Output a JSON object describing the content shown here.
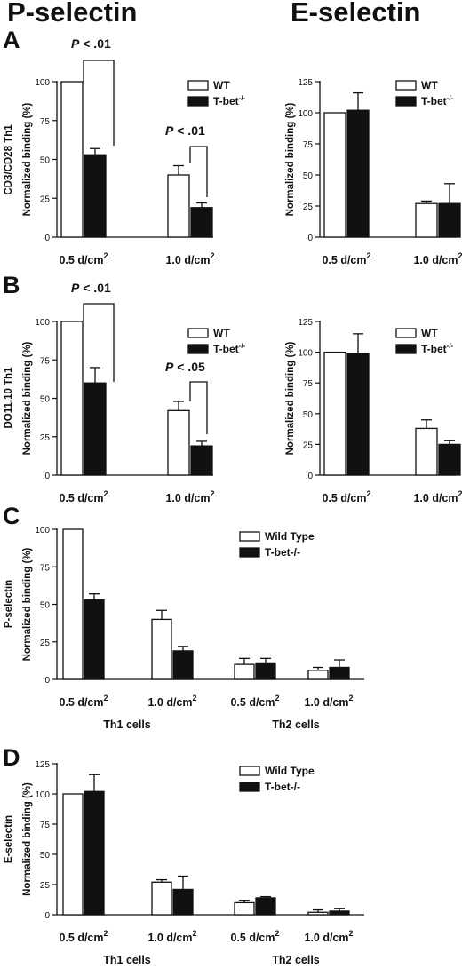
{
  "figure": {
    "col_titles": [
      "P-selectin",
      "E-selectin"
    ],
    "panel_letters": [
      "A",
      "B",
      "C",
      "D"
    ],
    "row_labels": [
      "CD3/CD28 Th1",
      "DO11.10 Th1",
      "P-selectin",
      "E-selectin"
    ]
  },
  "colors": {
    "wt": "#ffffff",
    "ko": "#111111",
    "axis": "#111111"
  },
  "chart_data": [
    {
      "id": "A-P",
      "type": "bar",
      "title": "",
      "xlabel": "",
      "ylabel": "Normalized binding (%)",
      "ylim": [
        0,
        100
      ],
      "yticks": [
        0,
        25,
        50,
        75,
        100
      ],
      "categories": [
        "0.5 d/cm²",
        "1.0 d/cm²"
      ],
      "group_labels": [],
      "series": [
        {
          "name": "WT",
          "values": [
            100,
            40
          ],
          "errors": [
            0,
            6
          ]
        },
        {
          "name": "T-bet⁻/⁻",
          "values": [
            53,
            19
          ],
          "errors": [
            4,
            3
          ]
        }
      ],
      "annotations": [
        "P < .01",
        "P < .01"
      ],
      "legend_position": "top-right"
    },
    {
      "id": "A-E",
      "type": "bar",
      "title": "",
      "xlabel": "",
      "ylabel": "Normalized binding (%)",
      "ylim": [
        0,
        125
      ],
      "yticks": [
        0,
        25,
        50,
        75,
        100,
        125
      ],
      "categories": [
        "0.5 d/cm²",
        "1.0 d/cm²"
      ],
      "group_labels": [],
      "series": [
        {
          "name": "WT",
          "values": [
            100,
            27
          ],
          "errors": [
            0,
            2
          ]
        },
        {
          "name": "T-bet⁻/⁻",
          "values": [
            102,
            27
          ],
          "errors": [
            14,
            16
          ]
        }
      ],
      "annotations": [],
      "legend_position": "top-right"
    },
    {
      "id": "B-P",
      "type": "bar",
      "title": "",
      "xlabel": "",
      "ylabel": "Normalized binding (%)",
      "ylim": [
        0,
        100
      ],
      "yticks": [
        0,
        25,
        50,
        75,
        100
      ],
      "categories": [
        "0.5 d/cm²",
        "1.0 d/cm²"
      ],
      "group_labels": [],
      "series": [
        {
          "name": "WT",
          "values": [
            100,
            42
          ],
          "errors": [
            0,
            6
          ]
        },
        {
          "name": "T-bet⁻/⁻",
          "values": [
            60,
            19
          ],
          "errors": [
            10,
            3
          ]
        }
      ],
      "annotations": [
        "P < .01",
        "P < .05"
      ],
      "legend_position": "top-right"
    },
    {
      "id": "B-E",
      "type": "bar",
      "title": "",
      "xlabel": "",
      "ylabel": "Normalized binding (%)",
      "ylim": [
        0,
        125
      ],
      "yticks": [
        0,
        25,
        50,
        75,
        100,
        125
      ],
      "categories": [
        "0.5 d/cm²",
        "1.0 d/cm²"
      ],
      "group_labels": [],
      "series": [
        {
          "name": "WT",
          "values": [
            100,
            38
          ],
          "errors": [
            0,
            7
          ]
        },
        {
          "name": "T-bet⁻/⁻",
          "values": [
            99,
            25
          ],
          "errors": [
            16,
            3
          ]
        }
      ],
      "annotations": [],
      "legend_position": "top-right"
    },
    {
      "id": "C",
      "type": "bar",
      "title": "",
      "xlabel": "",
      "ylabel": "Normalized binding (%)",
      "ylim": [
        0,
        100
      ],
      "yticks": [
        0,
        25,
        50,
        75,
        100
      ],
      "categories": [
        "0.5 d/cm²",
        "1.0 d/cm²",
        "0.5 d/cm²",
        "1.0 d/cm²"
      ],
      "group_labels": [
        "Th1 cells",
        "Th2 cells"
      ],
      "series": [
        {
          "name": "Wild Type",
          "values": [
            100,
            40,
            10,
            6
          ],
          "errors": [
            0,
            6,
            4,
            2
          ]
        },
        {
          "name": "T-bet-/-",
          "values": [
            53,
            19,
            11,
            8
          ],
          "errors": [
            4,
            3,
            3,
            5
          ]
        }
      ],
      "annotations": [],
      "legend_position": "top-right"
    },
    {
      "id": "D",
      "type": "bar",
      "title": "",
      "xlabel": "",
      "ylabel": "Normalized binding (%)",
      "ylim": [
        0,
        125
      ],
      "yticks": [
        0,
        25,
        50,
        75,
        100,
        125
      ],
      "categories": [
        "0.5 d/cm²",
        "1.0 d/cm²",
        "0.5 d/cm²",
        "1.0 d/cm²"
      ],
      "group_labels": [
        "Th1 cells",
        "Th2 cells"
      ],
      "series": [
        {
          "name": "Wild Type",
          "values": [
            100,
            27,
            10,
            2
          ],
          "errors": [
            0,
            2,
            2,
            2
          ]
        },
        {
          "name": "T-bet-/-",
          "values": [
            102,
            21,
            14,
            3
          ],
          "errors": [
            14,
            11,
            1,
            2
          ]
        }
      ],
      "annotations": [],
      "legend_position": "top-right"
    }
  ]
}
